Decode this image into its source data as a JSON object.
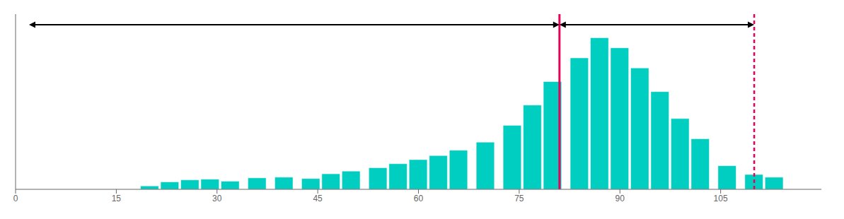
{
  "chart_data": {
    "type": "bar",
    "x": [
      20,
      23,
      26,
      29,
      32,
      36,
      40,
      44,
      47,
      50,
      54,
      57,
      60,
      63,
      66,
      70,
      74,
      77,
      80,
      84,
      87,
      90,
      93,
      96,
      99,
      102,
      106,
      110,
      113
    ],
    "values": [
      0.5,
      1.1,
      1.4,
      1.5,
      1.2,
      1.7,
      1.8,
      1.6,
      2.3,
      2.7,
      3.2,
      3.8,
      4.4,
      5.0,
      5.8,
      7.0,
      9.5,
      12.5,
      16.0,
      19.5,
      22.5,
      21.0,
      18.0,
      14.5,
      10.5,
      7.5,
      3.5,
      2.2,
      1.8
    ],
    "color": "#00CEC0",
    "xlim": [
      0,
      120
    ],
    "xticks": [
      0,
      15,
      30,
      45,
      60,
      75,
      90,
      105
    ],
    "ylim": [
      0,
      26
    ],
    "yticks": [],
    "tick_labels": "x",
    "grid": false,
    "vlines": [
      {
        "x": 81,
        "color": "#E8005A",
        "line_style": "solid"
      },
      {
        "x": 110,
        "color": "#E8005A",
        "line_style": "dashed"
      }
    ],
    "arrows": [
      {
        "x_start": 2,
        "x_end": 81,
        "y": 24.44,
        "color": "black"
      },
      {
        "x_start": 81,
        "x_end": 110,
        "y": 24.44,
        "color": "black"
      }
    ]
  }
}
